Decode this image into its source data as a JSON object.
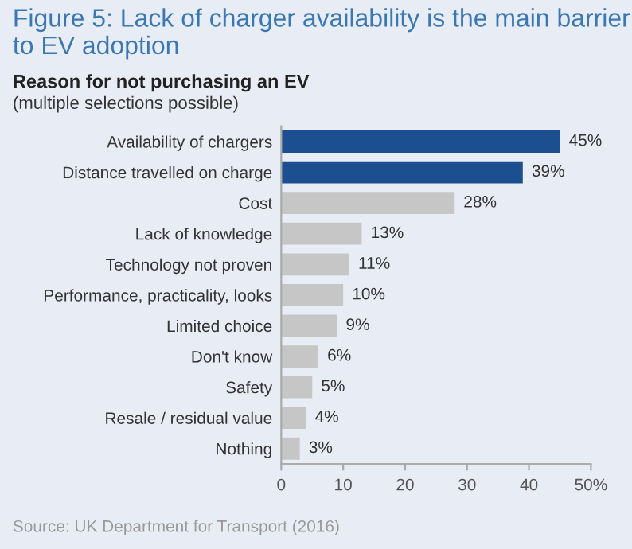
{
  "chart_data": {
    "type": "bar",
    "orientation": "horizontal",
    "title": "Figure 5: Lack of charger availability is the main barrier to EV adoption",
    "subtitle": "Reason for not purchasing an EV",
    "annotations": [
      "(multiple selections possible)",
      "Source: UK Department for Transport (2016)"
    ],
    "categories": [
      "Availability of chargers",
      "Distance travelled on charge",
      "Cost",
      "Lack of knowledge",
      "Technology not proven",
      "Performance, practicality, looks",
      "Limited choice",
      "Don't know",
      "Safety",
      "Resale / residual value",
      "Nothing"
    ],
    "values": [
      45,
      39,
      28,
      13,
      11,
      10,
      9,
      6,
      5,
      4,
      3
    ],
    "colors": [
      "#1c4f8f",
      "#1c4f8f",
      "#c6c6c6",
      "#c6c6c6",
      "#c6c6c6",
      "#c6c6c6",
      "#c6c6c6",
      "#c6c6c6",
      "#c6c6c6",
      "#c6c6c6",
      "#c6c6c6"
    ],
    "value_labels": [
      "45%",
      "39%",
      "28%",
      "13%",
      "11%",
      "10%",
      "9%",
      "6%",
      "5%",
      "4%",
      "3%"
    ],
    "xlim": [
      0,
      50
    ],
    "xticks": [
      0,
      10,
      20,
      30,
      40,
      {
        "value": 50,
        "label": "50%"
      }
    ],
    "grid": false
  }
}
